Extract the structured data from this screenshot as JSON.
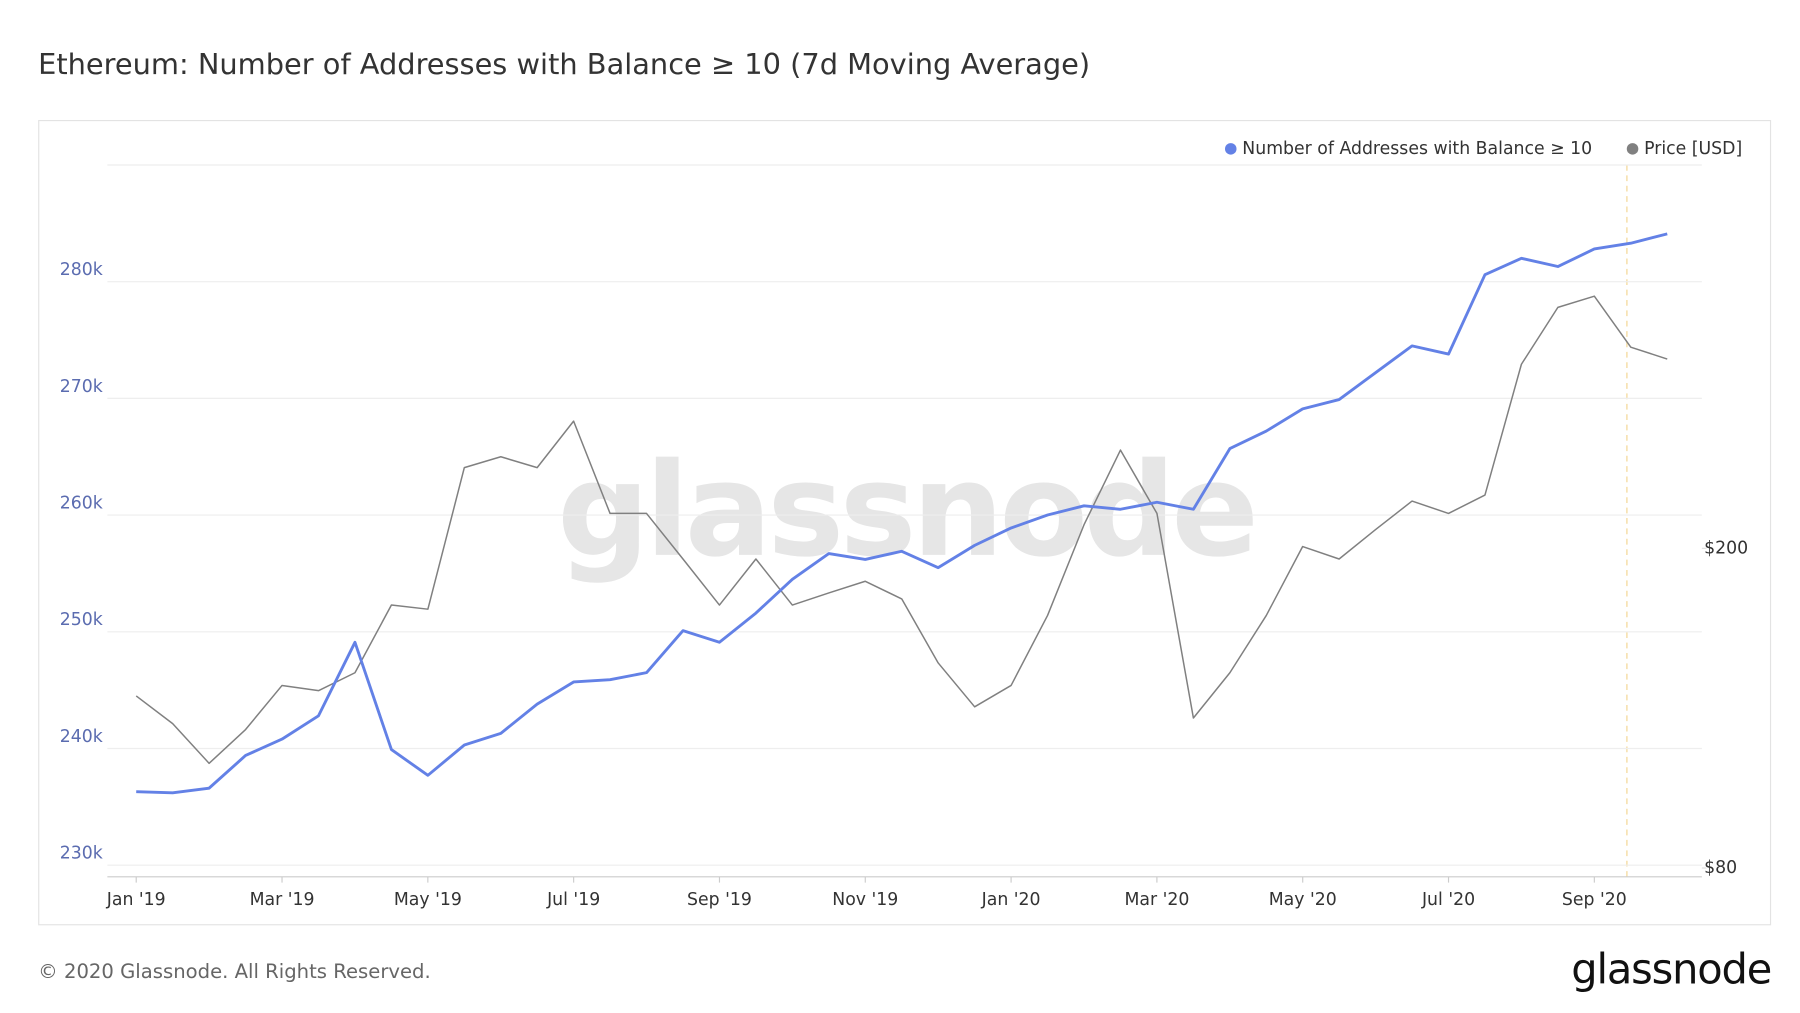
{
  "chart_data": {
    "type": "line",
    "title": "Ethereum: Number of Addresses with Balance ≥ 10 (7d Moving Average)",
    "watermark": "glassnode",
    "footer": "© 2020 Glassnode. All Rights Reserved.",
    "logo": "glassnode",
    "legend": "top-right",
    "grid": true,
    "y2log": true,
    "categories": [
      "Jan '19",
      null,
      null,
      null,
      "Mar '19",
      null,
      null,
      null,
      "May '19",
      null,
      null,
      null,
      "Jul '19",
      null,
      null,
      null,
      "Sep '19",
      null,
      null,
      null,
      "Nov '19",
      null,
      null,
      null,
      "Jan '20",
      null,
      null,
      null,
      "Mar '20",
      null,
      null,
      null,
      "May '20",
      null,
      null,
      null,
      "Jul '20",
      null,
      null,
      null,
      "Sep '20",
      null,
      null
    ],
    "ylim": [
      229000,
      290000
    ],
    "yticks": [
      {
        "value": 230000,
        "label": "230k"
      },
      {
        "value": 240000,
        "label": "240k"
      },
      {
        "value": 250000,
        "label": "250k"
      },
      {
        "value": 260000,
        "label": "260k"
      },
      {
        "value": 270000,
        "label": "270k"
      },
      {
        "value": 280000,
        "label": "280k"
      }
    ],
    "y2lim": [
      78,
      600
    ],
    "y2ticks": [
      {
        "value": 80,
        "label": "$80"
      },
      {
        "value": 200,
        "label": "$200"
      }
    ],
    "series": [
      {
        "name": "Number of Addresses with Balance ≥ 10",
        "color": "#6381e6",
        "axis": "y",
        "values": [
          236300,
          236200,
          236600,
          239400,
          240800,
          242800,
          249100,
          239900,
          237700,
          240300,
          241300,
          243800,
          245700,
          245900,
          246500,
          250100,
          249100,
          251600,
          254500,
          256700,
          256200,
          256900,
          255500,
          257400,
          258900,
          260000,
          260800,
          260500,
          261100,
          260500,
          265700,
          267200,
          269100,
          269900,
          272200,
          274500,
          273800,
          280600,
          282000,
          281300,
          282800,
          283300,
          284100
        ]
      },
      {
        "name": "Price [USD]",
        "color": "#808080",
        "axis": "y2",
        "values": [
          131,
          121,
          108,
          119,
          135,
          133,
          140,
          170,
          168,
          252,
          260,
          252,
          288,
          221,
          221,
          194,
          170,
          194,
          170,
          176,
          182,
          173,
          144,
          127,
          135,
          165,
          214,
          265,
          221,
          123,
          140,
          165,
          201,
          194,
          211,
          229,
          221,
          233,
          339,
          399,
          412,
          356,
          344
        ]
      }
    ]
  }
}
